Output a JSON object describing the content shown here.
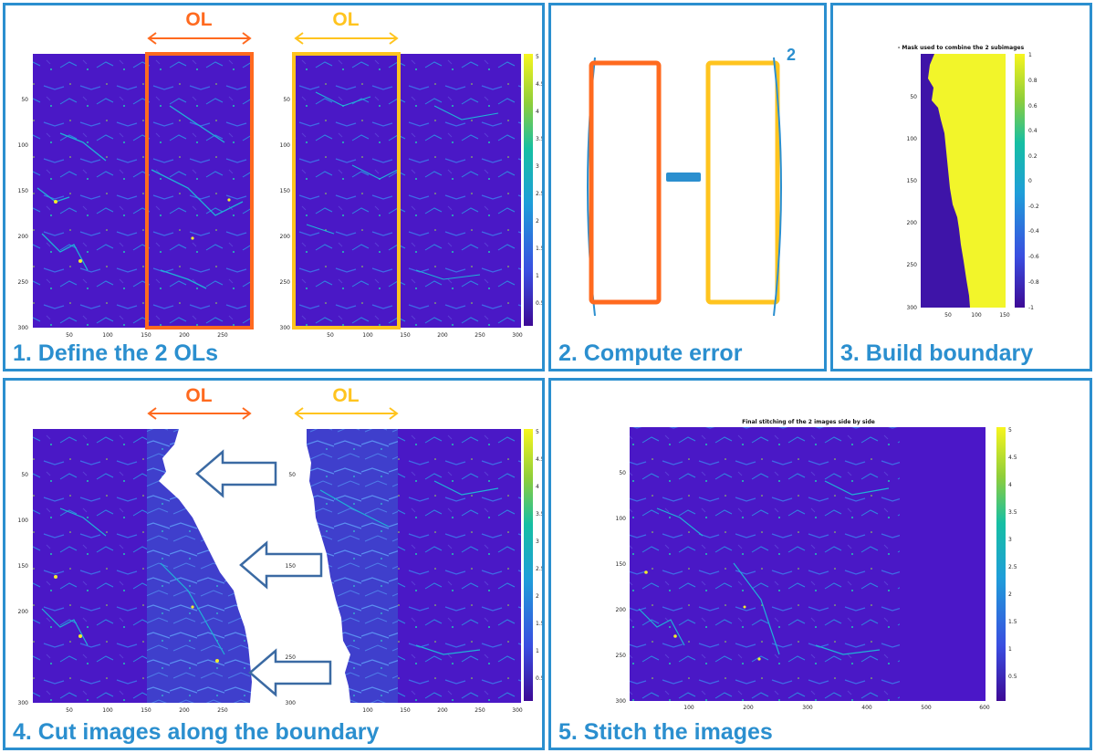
{
  "panels": {
    "p1": {
      "caption": "1. Define the 2 OLs"
    },
    "p2": {
      "caption": "2. Compute error"
    },
    "p3": {
      "caption": "3. Build boundary"
    },
    "p4": {
      "caption": "4. Cut images along the boundary"
    },
    "p5": {
      "caption": "5. Stitch the images"
    }
  },
  "overlap": {
    "left_label": "OL",
    "right_label": "OL"
  },
  "error": {
    "exponent": "2"
  },
  "mask_plot": {
    "title": "- Mask used to combine the 2 subimages",
    "colorbar_ticks": [
      "1",
      "0.8",
      "0.6",
      "0.4",
      "0.2",
      "0",
      "-0.2",
      "-0.4",
      "-0.6",
      "-0.8",
      "-1"
    ]
  },
  "stitch_plot": {
    "title": "Final stitching of the 2 images side by side"
  },
  "axes": {
    "y_ticks": [
      "50",
      "100",
      "150",
      "200",
      "250",
      "300"
    ],
    "x_ticks_left": [
      "50",
      "100",
      "150",
      "200",
      "250"
    ],
    "x_ticks_right": [
      "50",
      "100",
      "150",
      "200",
      "250",
      "300"
    ],
    "x_ticks_mask": [
      "50",
      "100",
      "150"
    ],
    "x_ticks_stitch": [
      "100",
      "200",
      "300",
      "400",
      "500",
      "600"
    ],
    "colorbar_ticks": [
      "5",
      "4.5",
      "4",
      "3.5",
      "3",
      "2.5",
      "2",
      "1.5",
      "1",
      "0.5"
    ]
  },
  "colors": {
    "frame": "#2b8fcf",
    "ol_left": "#ff6a1f",
    "ol_right": "#ffc41f",
    "background_data": "#4b17c8",
    "mask_high": "#f2f52a",
    "mask_low": "#3e14a8",
    "arrow": "#3b6aa3"
  }
}
